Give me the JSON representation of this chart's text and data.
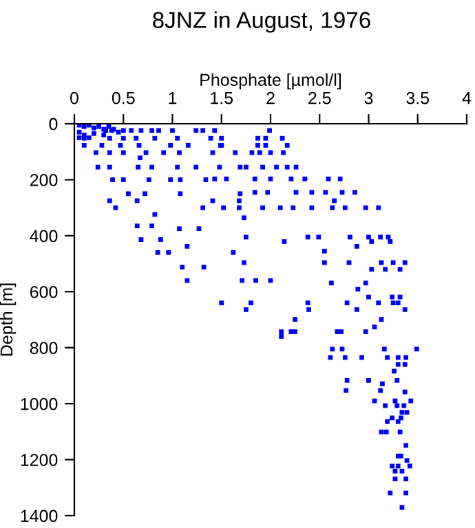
{
  "chart_data": {
    "type": "scatter",
    "title": "8JNZ in August, 1976",
    "xlabel": "Phosphate [µmol/l]",
    "ylabel": "Depth [m]",
    "xlim": [
      0,
      4
    ],
    "xticks": [
      0,
      0.5,
      1,
      1.5,
      2,
      2.5,
      3,
      3.5,
      4
    ],
    "ylim": [
      1400,
      0
    ],
    "yticks": [
      0,
      200,
      400,
      600,
      800,
      1000,
      1200,
      1400
    ],
    "grid": false,
    "legend": false,
    "marker": "square",
    "series": [
      {
        "color": "#0000ff",
        "x": [
          0.05,
          0.1,
          0.15,
          0.2,
          0.25,
          0.3,
          0.35,
          0.05,
          0.1,
          0.2,
          0.3,
          0.4,
          0.45,
          0.05,
          0.15,
          0.32,
          0.38,
          0.5,
          0.58,
          0.68,
          0.79,
          0.86,
          1.0,
          1.24,
          1.31,
          1.43,
          1.99,
          0.1,
          0.36,
          0.5,
          0.63,
          0.82,
          1.05,
          1.39,
          1.5,
          1.87,
          1.95,
          2.12,
          0.1,
          0.28,
          0.47,
          0.66,
          0.98,
          1.16,
          1.5,
          1.87,
          1.49,
          1.95,
          2.17,
          0.22,
          0.36,
          0.5,
          0.73,
          0.91,
          1.07,
          1.41,
          1.64,
          1.81,
          1.89,
          2.0,
          2.13,
          0.67,
          0.24,
          0.36,
          0.65,
          0.79,
          1.05,
          1.24,
          1.48,
          1.69,
          1.75,
          1.92,
          2.06,
          2.17,
          2.26,
          0.39,
          0.5,
          0.76,
          0.98,
          1.08,
          1.34,
          1.43,
          1.55,
          1.84,
          2.0,
          2.21,
          2.35,
          2.59,
          2.71,
          0.55,
          0.72,
          1.08,
          1.69,
          1.84,
          1.97,
          2.26,
          2.42,
          2.56,
          2.73,
          2.86,
          0.36,
          0.64,
          1.41,
          1.68,
          2.65,
          0.42,
          1.31,
          1.52,
          1.68,
          1.92,
          2.1,
          2.23,
          2.42,
          2.63,
          2.76,
          2.97,
          3.1,
          0.82,
          1.73,
          0.64,
          0.79,
          1.07,
          1.27,
          0.68,
          0.88,
          1.75,
          2.38,
          2.49,
          2.81,
          3.0,
          3.12,
          3.2,
          2.14,
          3.03,
          3.22,
          1.15,
          2.88,
          0.85,
          0.96,
          1.62,
          2.55,
          1.73,
          2.55,
          2.8,
          3.13,
          3.25,
          3.37,
          1.1,
          1.32,
          3.03,
          3.17,
          3.32,
          1.15,
          1.71,
          1.85,
          2.0,
          2.62,
          2.97,
          2.89,
          3.0,
          3.24,
          3.32,
          1.5,
          1.8,
          2.38,
          2.78,
          3.1,
          3.25,
          3.3,
          1.75,
          2.39,
          2.88,
          3.37,
          2.25,
          3.13,
          2.11,
          2.21,
          2.25,
          2.68,
          2.72,
          2.97,
          3.06,
          2.11,
          2.63,
          2.73,
          3.16,
          3.49,
          2.61,
          2.76,
          2.93,
          3.19,
          3.3,
          3.38,
          3.3,
          3.37,
          3.26,
          3.0,
          3.29,
          2.77,
          3.12,
          2.78,
          3.14,
          3.37,
          3.06,
          3.27,
          3.43,
          3.17,
          3.29,
          3.36,
          3.34,
          3.39,
          3.24,
          3.33,
          3.19,
          3.3,
          3.13,
          3.18,
          3.32,
          3.38,
          3.3,
          3.33,
          3.39,
          3.24,
          3.3,
          3.42,
          3.27,
          3.34,
          3.27,
          3.38,
          3.22,
          3.38,
          3.34
        ],
        "values": [
          5,
          10,
          5,
          15,
          10,
          20,
          10,
          30,
          40,
          35,
          40,
          20,
          30,
          50,
          50,
          24,
          24,
          24,
          24,
          24,
          24,
          24,
          24,
          24,
          24,
          24,
          24,
          52,
          52,
          52,
          52,
          52,
          52,
          52,
          52,
          52,
          52,
          52,
          77,
          77,
          77,
          77,
          77,
          77,
          77,
          77,
          77,
          77,
          77,
          103,
          103,
          103,
          103,
          103,
          103,
          103,
          103,
          103,
          103,
          103,
          103,
          122,
          155,
          155,
          155,
          155,
          155,
          155,
          155,
          155,
          155,
          155,
          155,
          155,
          155,
          200,
          200,
          200,
          200,
          200,
          200,
          197,
          197,
          197,
          197,
          197,
          197,
          197,
          197,
          250,
          250,
          250,
          250,
          245,
          245,
          245,
          245,
          245,
          245,
          245,
          275,
          275,
          275,
          275,
          275,
          300,
          300,
          300,
          300,
          300,
          300,
          300,
          300,
          300,
          300,
          300,
          300,
          324,
          336,
          365,
          365,
          375,
          375,
          414,
          414,
          405,
          405,
          405,
          405,
          405,
          405,
          405,
          421,
          421,
          421,
          438,
          438,
          460,
          460,
          460,
          455,
          496,
          496,
          496,
          496,
          496,
          496,
          512,
          512,
          520,
          520,
          520,
          560,
          560,
          560,
          560,
          569,
          569,
          591,
          619,
          619,
          619,
          640,
          640,
          640,
          640,
          640,
          640,
          640,
          664,
          664,
          664,
          664,
          699,
          699,
          743,
          743,
          743,
          743,
          743,
          743,
          726,
          760,
          805,
          805,
          805,
          805,
          835,
          835,
          835,
          835,
          835,
          835,
          860,
          860,
          884,
          917,
          917,
          953,
          953,
          917,
          929,
          958,
          990,
          990,
          990,
          1007,
          1007,
          1007,
          1031,
          1031,
          1051,
          1051,
          1064,
          1064,
          1101,
          1101,
          1101,
          1149,
          1187,
          1187,
          1203,
          1223,
          1223,
          1223,
          1241,
          1241,
          1269,
          1269,
          1319,
          1319,
          1371
        ]
      }
    ]
  }
}
